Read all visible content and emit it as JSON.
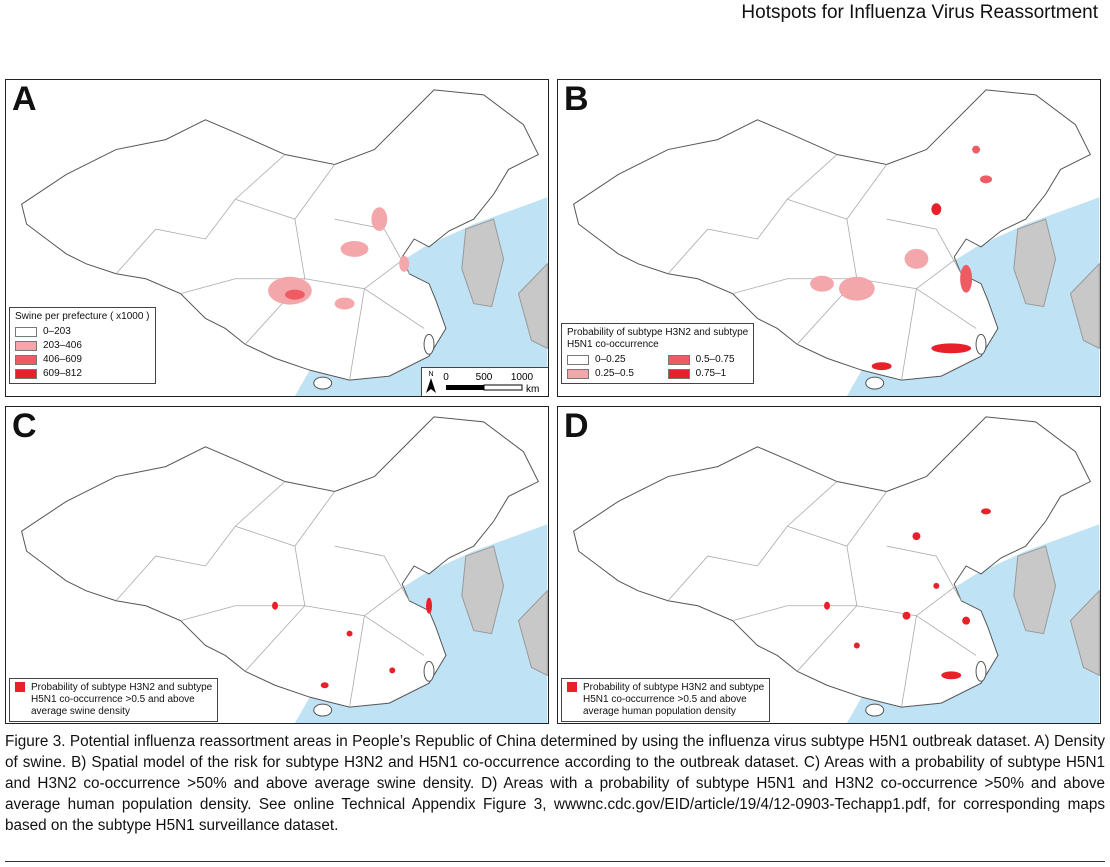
{
  "header": {
    "title": "Hotspots for Influenza Virus Reassortment"
  },
  "panels": [
    {
      "label": "A",
      "legend": {
        "title_lines": [
          "Swine per prefecture ( x1000 )"
        ],
        "items": [
          "0–203",
          "203–406",
          "406–609",
          "609–812"
        ]
      },
      "scale": {
        "north": "N",
        "ticks": [
          "0",
          "500",
          "1000"
        ],
        "unit": "km"
      }
    },
    {
      "label": "B",
      "legend": {
        "title_lines": [
          "Probability of subtype H3N2 and subtype",
          "H5N1 co-occurrence"
        ],
        "items": [
          "0–0.25",
          "0.25–0.5",
          "0.5–0.75",
          "0.75–1"
        ]
      }
    },
    {
      "label": "C",
      "legend": {
        "title_lines": [
          "Probability of subtype H3N2 and subtype",
          "H5N1 co-occurrence >0.5 and above",
          "average swine density"
        ],
        "items": []
      }
    },
    {
      "label": "D",
      "legend": {
        "title_lines": [
          "Probability of subtype H3N2 and subtype",
          "H5N1 co-occurrence >0.5 and above",
          "average human population density"
        ],
        "items": []
      }
    }
  ],
  "caption": "Figure 3. Potential influenza reassortment areas in People’s Republic of China determined by using the influenza virus subtype H5N1 outbreak dataset. A) Density of swine. B) Spatial model of the risk for subtype H3N2 and H5N1 co-occurrence according to the outbreak dataset. C) Areas with a probability of subtype H5N1 and H3N2 co-occurrence >50% and above average swine density. D) Areas with a probability of subtype H5N1 and H3N2 co-occurrence >50% and above average human population density. See online Technical Appendix Figure 3, wwwnc.cdc.gov/EID/article/19/4/12-0903-Techapp1.pdf, for corresponding maps based on the subtype H5N1 surveillance dataset."
}
